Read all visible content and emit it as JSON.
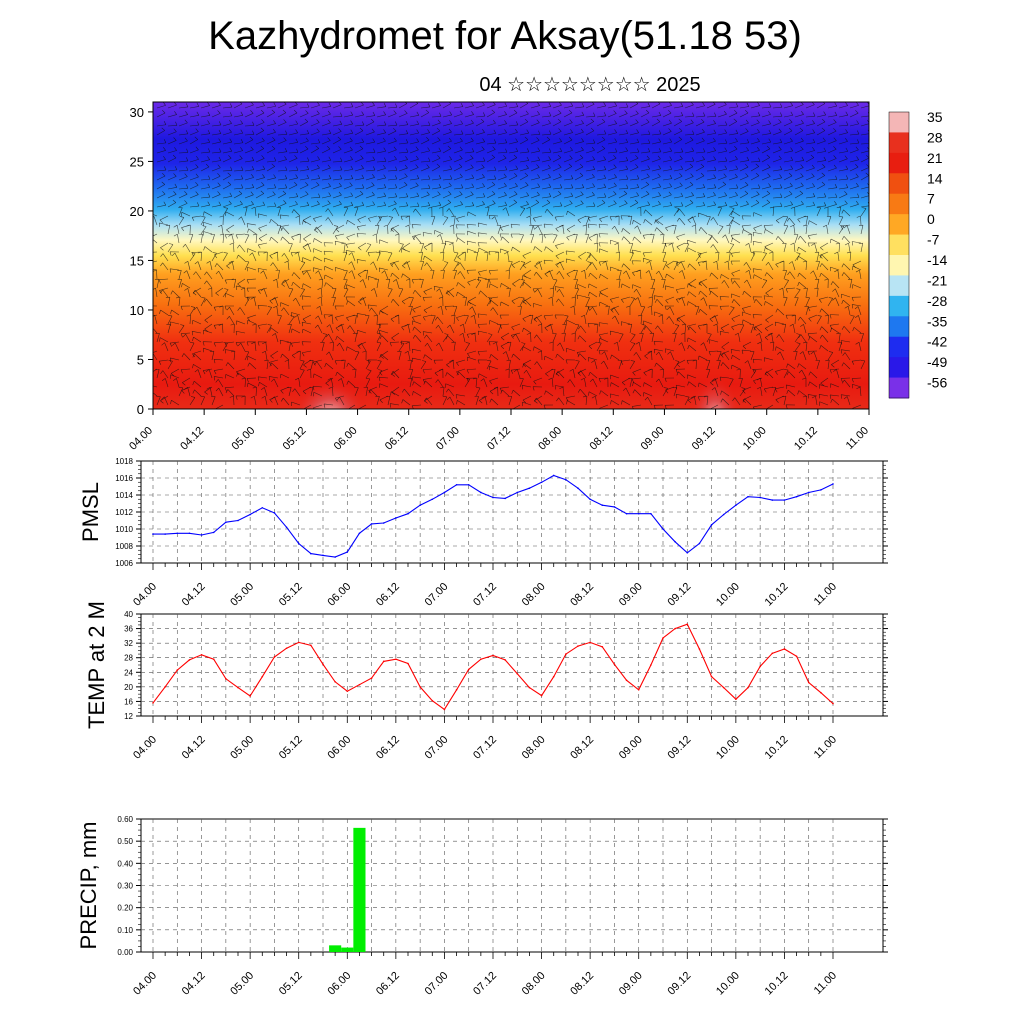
{
  "title": "Kazhydromet for Aksay(51.18 53)",
  "subtitle": "04 ☆☆☆☆☆☆☆☆ 2025",
  "chart_data": [
    {
      "type": "heatmap",
      "title": "Kazhydromet for Aksay(51.18 53)",
      "x_ticks": [
        "04.00",
        "04.12",
        "05.00",
        "05.12",
        "06.00",
        "06.12",
        "07.00",
        "07.12",
        "08.00",
        "08.12",
        "09.00",
        "09.12",
        "10.00",
        "10.12",
        "11.00"
      ],
      "ylim": [
        0,
        31
      ],
      "y_ticks": [
        0,
        5,
        10,
        15,
        20,
        25,
        30
      ],
      "colorbar": {
        "labels": [
          "35",
          "28",
          "21",
          "14",
          "7",
          "0",
          "-7",
          "-14",
          "-21",
          "-28",
          "-35",
          "-42",
          "-49",
          "-56"
        ],
        "colors": [
          "#f4b6b6",
          "#e8301e",
          "#e81e10",
          "#f05010",
          "#f87a14",
          "#ffa824",
          "#ffe060",
          "#fff6b0",
          "#b8e4f4",
          "#30b4f0",
          "#1e78f0",
          "#1e2cf0",
          "#2a18e8",
          "#7a30e8"
        ]
      },
      "wind_barbs": true
    },
    {
      "type": "line",
      "ylabel": "PMSL",
      "ylim": [
        1006,
        1018
      ],
      "y_ticks": [
        1006,
        1008,
        1010,
        1012,
        1014,
        1016,
        1018
      ],
      "x_ticks": [
        "04.00",
        "04.12",
        "05.00",
        "05.12",
        "06.00",
        "06.12",
        "07.00",
        "07.12",
        "08.00",
        "08.12",
        "09.00",
        "09.12",
        "10.00",
        "10.12",
        "11.00"
      ],
      "x": [
        0,
        3,
        6,
        9,
        12,
        15,
        18,
        21,
        24,
        27,
        30,
        33,
        36,
        39,
        42,
        45,
        48,
        51,
        54,
        57,
        60,
        63,
        66,
        69,
        72,
        75,
        78,
        81,
        84,
        87,
        90,
        93,
        96,
        99,
        102,
        105,
        108,
        111,
        114,
        117,
        120,
        123,
        126,
        129,
        132,
        135,
        138,
        141,
        144,
        147,
        150,
        153,
        156,
        159,
        162,
        165,
        168
      ],
      "series": [
        {
          "color": "#0000ff",
          "values": [
            1009.4,
            1009.4,
            1009.5,
            1009.5,
            1009.3,
            1009.6,
            1010.8,
            1011.0,
            1011.7,
            1012.5,
            1011.9,
            1010.2,
            1008.3,
            1007.1,
            1006.9,
            1006.7,
            1007.3,
            1009.5,
            1010.6,
            1010.7,
            1011.3,
            1011.8,
            1012.8,
            1013.5,
            1014.3,
            1015.2,
            1015.2,
            1014.3,
            1013.7,
            1013.6,
            1014.3,
            1014.8,
            1015.5,
            1016.3,
            1015.8,
            1014.8,
            1013.5,
            1012.8,
            1012.6,
            1011.8,
            1011.8,
            1011.8,
            1010.0,
            1008.5,
            1007.2,
            1008.3,
            1010.5,
            1011.7,
            1012.8,
            1013.8,
            1013.7,
            1013.4,
            1013.4,
            1013.8,
            1014.3,
            1014.6,
            1015.3
          ]
        }
      ]
    },
    {
      "type": "line",
      "ylabel": "TEMP at 2 M",
      "ylim": [
        12,
        40
      ],
      "y_ticks": [
        12,
        16,
        20,
        24,
        28,
        32,
        36,
        40
      ],
      "x_ticks": [
        "04.00",
        "04.12",
        "05.00",
        "05.12",
        "06.00",
        "06.12",
        "07.00",
        "07.12",
        "08.00",
        "08.12",
        "09.00",
        "09.12",
        "10.00",
        "10.12",
        "11.00"
      ],
      "x": [
        0,
        3,
        6,
        9,
        12,
        15,
        18,
        21,
        24,
        27,
        30,
        33,
        36,
        39,
        42,
        45,
        48,
        51,
        54,
        57,
        60,
        63,
        66,
        69,
        72,
        75,
        78,
        81,
        84,
        87,
        90,
        93,
        96,
        99,
        102,
        105,
        108,
        111,
        114,
        117,
        120,
        123,
        126,
        129,
        132,
        135,
        138,
        141,
        144,
        147,
        150,
        153,
        156,
        159,
        162,
        165,
        168
      ],
      "series": [
        {
          "color": "#ff0000",
          "values": [
            15.6,
            20.0,
            24.6,
            27.4,
            28.8,
            27.6,
            22.2,
            19.8,
            17.5,
            22.8,
            28.2,
            30.6,
            32.2,
            31.4,
            26.2,
            21.4,
            18.8,
            20.6,
            22.4,
            27.0,
            27.6,
            26.4,
            20.0,
            16.2,
            13.8,
            19.2,
            24.8,
            27.6,
            28.6,
            27.4,
            23.6,
            19.8,
            17.6,
            22.8,
            29.0,
            31.2,
            32.2,
            31.0,
            26.2,
            21.8,
            19.2,
            26.0,
            33.4,
            36.0,
            37.2,
            30.4,
            22.8,
            19.8,
            16.6,
            19.8,
            25.6,
            29.2,
            30.4,
            28.4,
            21.2,
            18.4,
            15.4
          ]
        }
      ]
    },
    {
      "type": "bar",
      "ylabel": "PRECIP, mm",
      "ylim": [
        0,
        0.6
      ],
      "y_ticks": [
        "0.00",
        "0.10",
        "0.20",
        "0.30",
        "0.40",
        "0.50",
        "0.60"
      ],
      "x_ticks": [
        "04.00",
        "04.12",
        "05.00",
        "05.12",
        "06.00",
        "06.12",
        "07.00",
        "07.12",
        "08.00",
        "08.12",
        "09.00",
        "09.12",
        "10.00",
        "10.12",
        "11.00"
      ],
      "x": [
        45,
        48,
        51
      ],
      "values": [
        0.03,
        0.02,
        0.56
      ],
      "color": "#00ee00"
    }
  ]
}
